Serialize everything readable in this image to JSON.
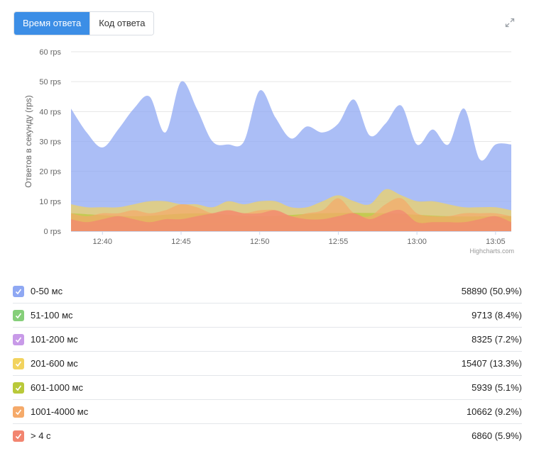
{
  "tabs": [
    {
      "label": "Время ответа",
      "active": true
    },
    {
      "label": "Код ответа",
      "active": false
    }
  ],
  "expand_icon": "expand-arrows-icon",
  "credits": "Highcharts.com",
  "chart_data": {
    "type": "area",
    "ylabel": "Ответов в секунду (rps)",
    "ylim": [
      0,
      60
    ],
    "yticks": [
      "0 rps",
      "10 rps",
      "20 rps",
      "30 rps",
      "40 rps",
      "50 rps",
      "60 rps"
    ],
    "x_start": "12:38",
    "x_end": "13:06",
    "xticks": [
      "12:40",
      "12:45",
      "12:50",
      "12:55",
      "13:00",
      "13:05"
    ],
    "grid": true,
    "series": [
      {
        "name": "0-50 мс",
        "color": "#8fa8f3",
        "x": [
          "12:38",
          "12:39",
          "12:40",
          "12:41",
          "12:42",
          "12:43",
          "12:44",
          "12:45",
          "12:46",
          "12:47",
          "12:48",
          "12:49",
          "12:50",
          "12:51",
          "12:52",
          "12:53",
          "12:54",
          "12:55",
          "12:56",
          "12:57",
          "12:58",
          "12:59",
          "13:00",
          "13:01",
          "13:02",
          "13:03",
          "13:04",
          "13:05",
          "13:06"
        ],
        "y": [
          41,
          33,
          28,
          34,
          41,
          45,
          33,
          50,
          41,
          30,
          29,
          30,
          47,
          38,
          31,
          35,
          33,
          36,
          44,
          32,
          36,
          42,
          29,
          34,
          29,
          41,
          24,
          29,
          29
        ]
      },
      {
        "name": "51-100 мс",
        "color": "#86cf7a",
        "x": [
          "12:38",
          "12:41",
          "12:44",
          "12:47",
          "12:50",
          "12:53",
          "12:56",
          "12:59",
          "13:02",
          "13:06"
        ],
        "y": [
          3,
          3,
          3,
          3,
          3,
          3,
          3,
          3,
          3,
          3
        ]
      },
      {
        "name": "101-200 мс",
        "color": "#c89ae8",
        "x": [
          "12:38",
          "12:42",
          "12:46",
          "12:50",
          "12:54",
          "12:58",
          "13:02",
          "13:06"
        ],
        "y": [
          2,
          2,
          2,
          2,
          2,
          2,
          2,
          2
        ]
      },
      {
        "name": "201-600 мс",
        "color": "#f2d35e",
        "x": [
          "12:38",
          "12:39",
          "12:40",
          "12:41",
          "12:42",
          "12:43",
          "12:44",
          "12:45",
          "12:46",
          "12:47",
          "12:48",
          "12:49",
          "12:50",
          "12:51",
          "12:52",
          "12:53",
          "12:54",
          "12:55",
          "12:56",
          "12:57",
          "12:58",
          "12:59",
          "13:00",
          "13:01",
          "13:02",
          "13:03",
          "13:04",
          "13:05",
          "13:06"
        ],
        "y": [
          9,
          8,
          8,
          8,
          9,
          10,
          10,
          9,
          9,
          8,
          10,
          9,
          10,
          10,
          8,
          8,
          10,
          12,
          10,
          9,
          14,
          12,
          10,
          10,
          9,
          8,
          8,
          8,
          7
        ]
      },
      {
        "name": "601-1000 мс",
        "color": "#b9c93a",
        "x": [
          "12:38",
          "12:42",
          "12:46",
          "12:50",
          "12:54",
          "12:58",
          "13:02",
          "13:06"
        ],
        "y": [
          6,
          5,
          6,
          5,
          6,
          6,
          5,
          5
        ]
      },
      {
        "name": "1001-4000 мс",
        "color": "#f5aa6a",
        "x": [
          "12:38",
          "12:39",
          "12:40",
          "12:41",
          "12:42",
          "12:43",
          "12:44",
          "12:45",
          "12:46",
          "12:47",
          "12:48",
          "12:49",
          "12:50",
          "12:51",
          "12:52",
          "12:53",
          "12:54",
          "12:55",
          "12:56",
          "12:57",
          "12:58",
          "12:59",
          "13:00",
          "13:01",
          "13:02",
          "13:03",
          "13:04",
          "13:05",
          "13:06"
        ],
        "y": [
          6,
          5,
          6,
          6,
          7,
          6,
          7,
          9,
          8,
          6,
          7,
          6,
          7,
          7,
          5,
          6,
          7,
          11,
          6,
          5,
          9,
          11,
          6,
          5,
          5,
          6,
          6,
          6,
          5
        ]
      },
      {
        "name": "> 4 с",
        "color": "#f28570",
        "x": [
          "12:38",
          "12:39",
          "12:40",
          "12:41",
          "12:42",
          "12:43",
          "12:44",
          "12:45",
          "12:46",
          "12:47",
          "12:48",
          "12:49",
          "12:50",
          "12:51",
          "12:52",
          "12:53",
          "12:54",
          "12:55",
          "12:56",
          "12:57",
          "12:58",
          "12:59",
          "13:00",
          "13:01",
          "13:02",
          "13:03",
          "13:04",
          "13:05",
          "13:06"
        ],
        "y": [
          4,
          3,
          4,
          5,
          4,
          3,
          4,
          4,
          5,
          6,
          7,
          6,
          6,
          7,
          5,
          4,
          4,
          5,
          6,
          4,
          6,
          7,
          3,
          3,
          3,
          3,
          4,
          5,
          3
        ]
      }
    ]
  },
  "legend": [
    {
      "label": "0-50 мс",
      "value": "58890 (50.9%)",
      "color": "#8fa8f3"
    },
    {
      "label": "51-100 мс",
      "value": "9713 (8.4%)",
      "color": "#86cf7a"
    },
    {
      "label": "101-200 мс",
      "value": "8325 (7.2%)",
      "color": "#c89ae8"
    },
    {
      "label": "201-600 мс",
      "value": "15407 (13.3%)",
      "color": "#f2d35e"
    },
    {
      "label": "601-1000 мс",
      "value": "5939 (5.1%)",
      "color": "#b9c93a"
    },
    {
      "label": "1001-4000 мс",
      "value": "10662 (9.2%)",
      "color": "#f5aa6a"
    },
    {
      "label": "> 4 с",
      "value": "6860 (5.9%)",
      "color": "#f28570"
    }
  ]
}
